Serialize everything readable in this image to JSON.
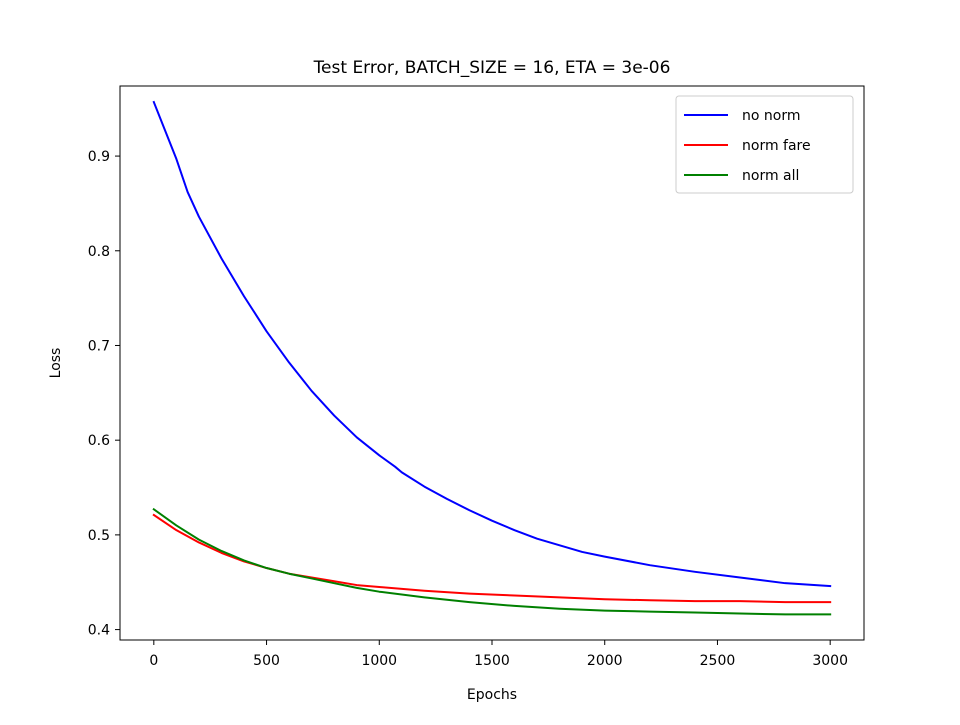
{
  "chart_data": {
    "type": "line",
    "title": "Test Error, BATCH_SIZE = 16, ETA = 3e-06",
    "xlabel": "Epochs",
    "ylabel": "Loss",
    "xlim": [
      -150,
      3150
    ],
    "ylim": [
      0.389,
      0.974
    ],
    "xticks": [
      0,
      500,
      1000,
      1500,
      2000,
      2500,
      3000
    ],
    "xtick_labels": [
      "0",
      "500",
      "1000",
      "1500",
      "2000",
      "2500",
      "3000"
    ],
    "yticks": [
      0.4,
      0.5,
      0.6,
      0.7,
      0.8,
      0.9
    ],
    "ytick_labels": [
      "0.4",
      "0.5",
      "0.6",
      "0.7",
      "0.8",
      "0.9"
    ],
    "grid": false,
    "legend_position": "top-right",
    "series": [
      {
        "name": "no norm",
        "color": "#0000ff",
        "x": [
          0,
          100,
          150,
          200,
          300,
          400,
          500,
          600,
          700,
          800,
          900,
          1000,
          1070,
          1100,
          1200,
          1300,
          1400,
          1500,
          1600,
          1700,
          1800,
          1900,
          2000,
          2200,
          2400,
          2600,
          2800,
          3000
        ],
        "y": [
          0.957,
          0.897,
          0.862,
          0.836,
          0.792,
          0.752,
          0.715,
          0.682,
          0.652,
          0.626,
          0.603,
          0.584,
          0.572,
          0.566,
          0.551,
          0.538,
          0.526,
          0.515,
          0.505,
          0.496,
          0.489,
          0.482,
          0.477,
          0.468,
          0.461,
          0.455,
          0.449,
          0.446
        ]
      },
      {
        "name": "norm fare",
        "color": "#ff0000",
        "x": [
          0,
          100,
          200,
          300,
          400,
          500,
          600,
          700,
          800,
          900,
          1000,
          1200,
          1400,
          1600,
          1800,
          2000,
          2200,
          2400,
          2600,
          2800,
          3000
        ],
        "y": [
          0.521,
          0.505,
          0.492,
          0.481,
          0.472,
          0.465,
          0.459,
          0.455,
          0.451,
          0.447,
          0.445,
          0.441,
          0.438,
          0.436,
          0.434,
          0.432,
          0.431,
          0.43,
          0.43,
          0.429,
          0.429
        ]
      },
      {
        "name": "norm all",
        "color": "#008000",
        "x": [
          0,
          100,
          200,
          300,
          400,
          500,
          600,
          700,
          800,
          900,
          1000,
          1200,
          1400,
          1600,
          1800,
          2000,
          2200,
          2400,
          2600,
          2800,
          3000
        ],
        "y": [
          0.527,
          0.51,
          0.495,
          0.483,
          0.473,
          0.465,
          0.459,
          0.454,
          0.449,
          0.444,
          0.44,
          0.434,
          0.429,
          0.425,
          0.422,
          0.42,
          0.419,
          0.418,
          0.417,
          0.416,
          0.416
        ]
      }
    ]
  }
}
